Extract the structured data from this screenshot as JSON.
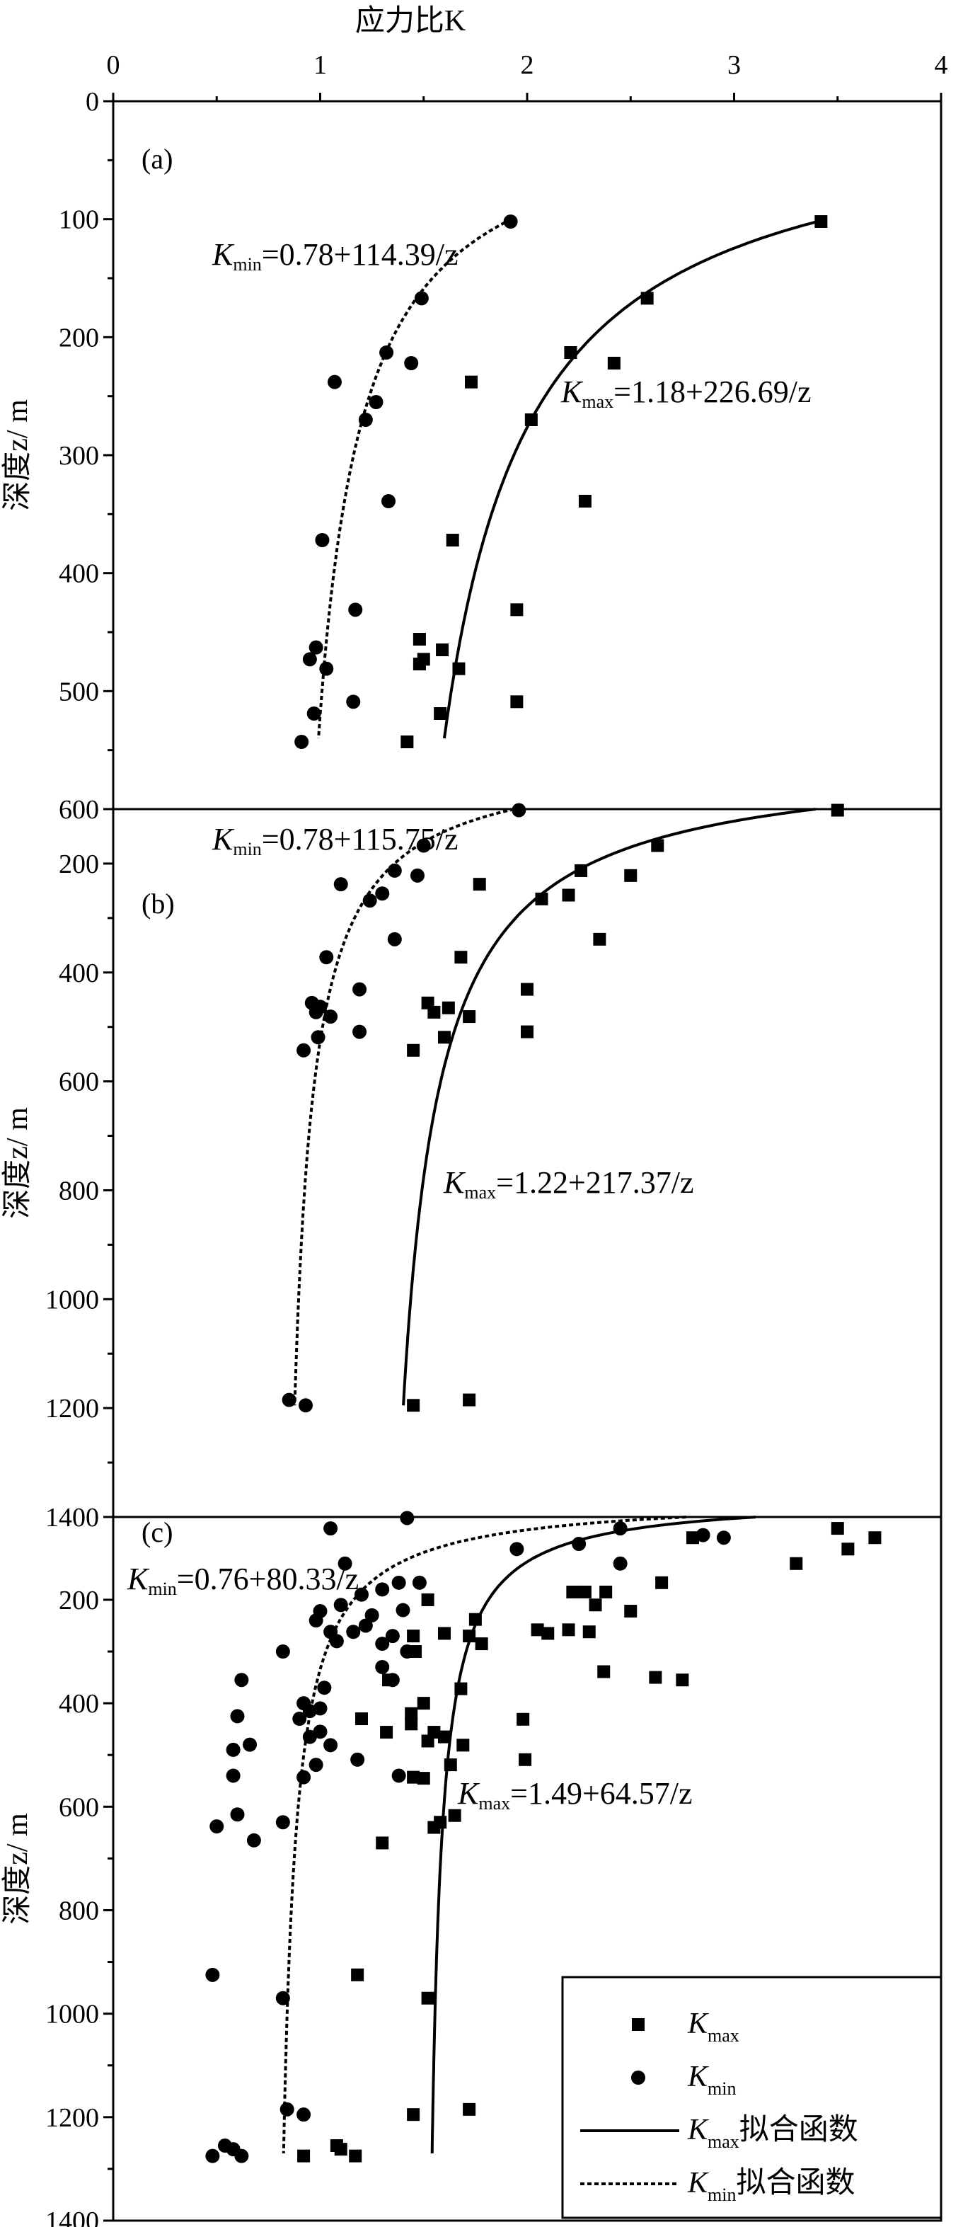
{
  "figure": {
    "x_axis_title": "应力比K",
    "y_axis_title": "深度z/ m",
    "x_ticks": [
      "0",
      "1",
      "2",
      "3",
      "4"
    ],
    "xlim": [
      0,
      4
    ]
  },
  "legend": {
    "items": [
      {
        "k": "K",
        "sub": "max",
        "suffix": "",
        "marker": "square"
      },
      {
        "k": "K",
        "sub": "min",
        "suffix": "",
        "marker": "circle"
      },
      {
        "k": "K",
        "sub": "max",
        "suffix": "拟合函数",
        "marker": "solid-line"
      },
      {
        "k": "K",
        "sub": "min",
        "suffix": "拟合函数",
        "marker": "dashed-line"
      }
    ]
  },
  "chart_data": [
    {
      "type": "scatter",
      "panel": "(a)",
      "xlabel": "应力比K",
      "ylabel": "深度z/ m",
      "xlim": [
        0,
        4
      ],
      "ylim": [
        0,
        600
      ],
      "y_ticks": [
        "0",
        "100",
        "200",
        "300",
        "400",
        "500",
        "600"
      ],
      "y_tick_values": [
        0,
        100,
        200,
        300,
        400,
        500,
        600
      ],
      "eq_min": {
        "k": "K",
        "sub": "min",
        "rest": "=0.78+114.39/z"
      },
      "eq_max": {
        "k": "K",
        "sub": "max",
        "rest": "=1.18+226.69/z"
      },
      "fit_min": {
        "a": 0.78,
        "b": 114.39,
        "z_range": [
          100,
          540
        ]
      },
      "fit_max": {
        "a": 1.18,
        "b": 226.69,
        "z_range": [
          100,
          540
        ]
      },
      "series": [
        {
          "name": "Kmax",
          "marker": "square",
          "points": [
            [
              3.42,
              102
            ],
            [
              2.58,
              167
            ],
            [
              2.21,
              213
            ],
            [
              2.42,
              222
            ],
            [
              1.73,
              238
            ],
            [
              2.02,
              270
            ],
            [
              2.28,
              339
            ],
            [
              1.64,
              372
            ],
            [
              1.95,
              431
            ],
            [
              1.48,
              456
            ],
            [
              1.59,
              465
            ],
            [
              1.5,
              473
            ],
            [
              1.48,
              477
            ],
            [
              1.67,
              481
            ],
            [
              1.95,
              509
            ],
            [
              1.58,
              519
            ],
            [
              1.42,
              543
            ]
          ]
        },
        {
          "name": "Kmin",
          "marker": "circle",
          "points": [
            [
              1.92,
              102
            ],
            [
              1.49,
              167
            ],
            [
              1.32,
              213
            ],
            [
              1.44,
              222
            ],
            [
              1.07,
              238
            ],
            [
              1.27,
              255
            ],
            [
              1.22,
              270
            ],
            [
              1.33,
              339
            ],
            [
              1.01,
              372
            ],
            [
              1.17,
              431
            ],
            [
              0.98,
              463
            ],
            [
              0.95,
              473
            ],
            [
              1.03,
              481
            ],
            [
              1.16,
              509
            ],
            [
              0.97,
              519
            ],
            [
              0.91,
              543
            ]
          ]
        }
      ]
    },
    {
      "type": "scatter",
      "panel": "(b)",
      "xlabel": "应力比K",
      "ylabel": "深度z/ m",
      "xlim": [
        0,
        4
      ],
      "ylim": [
        100,
        1400
      ],
      "y_ticks": [
        "200",
        "400",
        "600",
        "800",
        "1000",
        "1200",
        "1400"
      ],
      "y_tick_values": [
        200,
        400,
        600,
        800,
        1000,
        1200,
        1400
      ],
      "eq_min": {
        "k": "K",
        "sub": "min",
        "rest": "=0.78+115.75/z"
      },
      "eq_max": {
        "k": "K",
        "sub": "max",
        "rest": "=1.22+217.37/z"
      },
      "fit_min": {
        "a": 0.78,
        "b": 115.75,
        "z_range": [
          100,
          1195
        ]
      },
      "fit_max": {
        "a": 1.22,
        "b": 217.37,
        "z_range": [
          100,
          1195
        ]
      },
      "series": [
        {
          "name": "Kmax",
          "marker": "square",
          "points": [
            [
              3.5,
              102
            ],
            [
              2.63,
              167
            ],
            [
              2.26,
              213
            ],
            [
              2.5,
              222
            ],
            [
              1.77,
              238
            ],
            [
              2.2,
              258
            ],
            [
              2.07,
              265
            ],
            [
              2.35,
              339
            ],
            [
              1.68,
              372
            ],
            [
              2.0,
              431
            ],
            [
              1.52,
              456
            ],
            [
              1.62,
              465
            ],
            [
              1.55,
              473
            ],
            [
              1.72,
              481
            ],
            [
              2.0,
              509
            ],
            [
              1.6,
              519
            ],
            [
              1.45,
              543
            ],
            [
              1.72,
              1185
            ],
            [
              1.45,
              1195
            ]
          ]
        },
        {
          "name": "Kmin",
          "marker": "circle",
          "points": [
            [
              1.96,
              102
            ],
            [
              1.5,
              167
            ],
            [
              1.36,
              213
            ],
            [
              1.47,
              222
            ],
            [
              1.1,
              238
            ],
            [
              1.3,
              255
            ],
            [
              1.24,
              268
            ],
            [
              1.36,
              339
            ],
            [
              1.03,
              372
            ],
            [
              1.19,
              431
            ],
            [
              0.96,
              456
            ],
            [
              1.0,
              463
            ],
            [
              0.98,
              473
            ],
            [
              1.05,
              481
            ],
            [
              1.19,
              509
            ],
            [
              0.99,
              519
            ],
            [
              0.92,
              543
            ],
            [
              0.85,
              1185
            ],
            [
              0.93,
              1195
            ]
          ]
        }
      ]
    },
    {
      "type": "scatter",
      "panel": "(c)",
      "xlabel": "应力比K",
      "ylabel": "深度z/ m",
      "xlim": [
        0,
        4
      ],
      "ylim": [
        40,
        1400
      ],
      "y_ticks": [
        "200",
        "400",
        "600",
        "800",
        "1000",
        "1200",
        "1400"
      ],
      "y_tick_values": [
        200,
        400,
        600,
        800,
        1000,
        1200,
        1400
      ],
      "eq_min": {
        "k": "K",
        "sub": "min",
        "rest": "=0.76+80.33/z"
      },
      "eq_max": {
        "k": "K",
        "sub": "max",
        "rest": "=1.49+64.57/z"
      },
      "fit_min": {
        "a": 0.76,
        "b": 80.33,
        "z_range": [
          40,
          1270
        ]
      },
      "fit_max": {
        "a": 1.49,
        "b": 64.57,
        "z_range": [
          40,
          1270
        ]
      },
      "series": [
        {
          "name": "Kmax",
          "marker": "square",
          "points": [
            [
              3.5,
              62
            ],
            [
              3.68,
              80
            ],
            [
              3.55,
              102
            ],
            [
              2.8,
              80
            ],
            [
              3.3,
              130
            ],
            [
              2.65,
              167
            ],
            [
              2.22,
              185
            ],
            [
              2.28,
              185
            ],
            [
              2.38,
              185
            ],
            [
              2.33,
              210
            ],
            [
              2.5,
              222
            ],
            [
              1.52,
              200
            ],
            [
              1.75,
              238
            ],
            [
              2.05,
              258
            ],
            [
              2.2,
              258
            ],
            [
              2.1,
              265
            ],
            [
              2.3,
              262
            ],
            [
              1.6,
              265
            ],
            [
              1.72,
              270
            ],
            [
              1.78,
              285
            ],
            [
              1.45,
              270
            ],
            [
              2.37,
              339
            ],
            [
              2.62,
              350
            ],
            [
              2.75,
              355
            ],
            [
              1.68,
              372
            ],
            [
              1.33,
              355
            ],
            [
              1.46,
              300
            ],
            [
              1.5,
              400
            ],
            [
              1.44,
              420
            ],
            [
              1.44,
              440
            ],
            [
              1.98,
              431
            ],
            [
              1.32,
              456
            ],
            [
              1.55,
              456
            ],
            [
              1.6,
              465
            ],
            [
              1.52,
              473
            ],
            [
              1.69,
              481
            ],
            [
              1.2,
              430
            ],
            [
              1.99,
              509
            ],
            [
              1.63,
              519
            ],
            [
              1.45,
              543
            ],
            [
              1.5,
              545
            ],
            [
              1.65,
              617
            ],
            [
              1.58,
              630
            ],
            [
              1.55,
              640
            ],
            [
              1.3,
              670
            ],
            [
              1.18,
              925
            ],
            [
              1.52,
              970
            ],
            [
              1.72,
              1185
            ],
            [
              1.45,
              1195
            ],
            [
              1.08,
              1255
            ],
            [
              1.1,
              1262
            ],
            [
              0.92,
              1275
            ],
            [
              1.17,
              1275
            ]
          ]
        },
        {
          "name": "Kmin",
          "marker": "circle",
          "points": [
            [
              1.42,
              42
            ],
            [
              1.05,
              62
            ],
            [
              2.45,
              62
            ],
            [
              2.85,
              75
            ],
            [
              2.95,
              80
            ],
            [
              2.25,
              92
            ],
            [
              1.95,
              102
            ],
            [
              2.45,
              130
            ],
            [
              1.12,
              130
            ],
            [
              1.38,
              167
            ],
            [
              1.3,
              180
            ],
            [
              1.48,
              167
            ],
            [
              1.2,
              190
            ],
            [
              1.1,
              210
            ],
            [
              1.0,
              222
            ],
            [
              1.25,
              230
            ],
            [
              1.4,
              220
            ],
            [
              0.98,
              240
            ],
            [
              1.22,
              250
            ],
            [
              1.16,
              262
            ],
            [
              1.05,
              262
            ],
            [
              1.35,
              270
            ],
            [
              1.08,
              280
            ],
            [
              1.3,
              285
            ],
            [
              0.82,
              300
            ],
            [
              1.42,
              300
            ],
            [
              1.3,
              330
            ],
            [
              0.62,
              355
            ],
            [
              1.35,
              355
            ],
            [
              1.02,
              370
            ],
            [
              0.92,
              400
            ],
            [
              0.95,
              415
            ],
            [
              1.0,
              410
            ],
            [
              0.9,
              430
            ],
            [
              0.6,
              425
            ],
            [
              1.0,
              455
            ],
            [
              0.95,
              465
            ],
            [
              1.05,
              481
            ],
            [
              1.18,
              509
            ],
            [
              0.58,
              490
            ],
            [
              0.66,
              480
            ],
            [
              0.98,
              519
            ],
            [
              0.92,
              543
            ],
            [
              0.58,
              540
            ],
            [
              1.38,
              540
            ],
            [
              0.6,
              615
            ],
            [
              0.82,
              630
            ],
            [
              0.5,
              638
            ],
            [
              0.68,
              665
            ],
            [
              0.48,
              925
            ],
            [
              0.82,
              970
            ],
            [
              0.84,
              1185
            ],
            [
              0.92,
              1195
            ],
            [
              0.54,
              1255
            ],
            [
              0.58,
              1262
            ],
            [
              0.48,
              1275
            ],
            [
              0.62,
              1275
            ]
          ]
        }
      ]
    }
  ]
}
